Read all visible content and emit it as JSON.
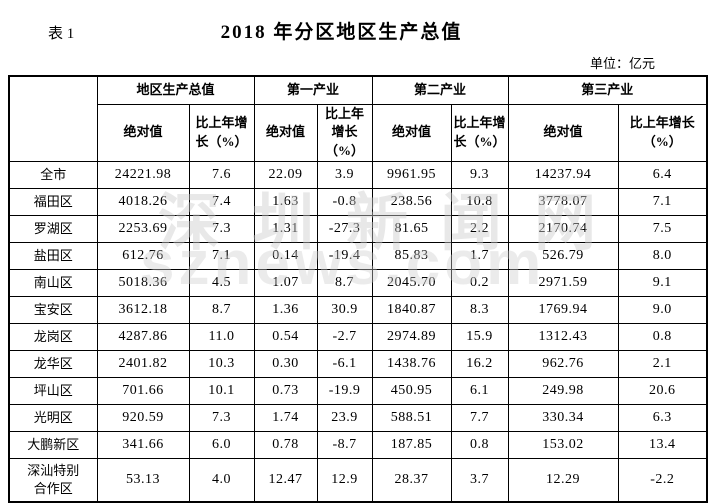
{
  "header": {
    "table_label": "表 1",
    "title": "2018 年分区地区生产总值",
    "unit_note": "单位：亿元"
  },
  "watermark": {
    "line1": "深圳新闻网",
    "line2": "sznews.com"
  },
  "table": {
    "group_headers": [
      "地区生产总值",
      "第一产业",
      "第二产业",
      "第三产业"
    ],
    "sub_headers": [
      "绝对值",
      "比上年增长（%）"
    ],
    "rows": [
      {
        "region": "全市",
        "values": [
          "24221.98",
          "7.6",
          "22.09",
          "3.9",
          "9961.95",
          "9.3",
          "14237.94",
          "6.4"
        ]
      },
      {
        "region": "福田区",
        "values": [
          "4018.26",
          "7.4",
          "1.63",
          "-0.8",
          "238.56",
          "10.8",
          "3778.07",
          "7.1"
        ]
      },
      {
        "region": "罗湖区",
        "values": [
          "2253.69",
          "7.3",
          "1.31",
          "-27.3",
          "81.65",
          "2.2",
          "2170.74",
          "7.5"
        ]
      },
      {
        "region": "盐田区",
        "values": [
          "612.76",
          "7.1",
          "0.14",
          "-19.4",
          "85.83",
          "1.7",
          "526.79",
          "8.0"
        ]
      },
      {
        "region": "南山区",
        "values": [
          "5018.36",
          "4.5",
          "1.07",
          "8.7",
          "2045.70",
          "0.2",
          "2971.59",
          "9.1"
        ]
      },
      {
        "region": "宝安区",
        "values": [
          "3612.18",
          "8.7",
          "1.36",
          "30.9",
          "1840.87",
          "8.3",
          "1769.94",
          "9.0"
        ]
      },
      {
        "region": "龙岗区",
        "values": [
          "4287.86",
          "11.0",
          "0.54",
          "-2.7",
          "2974.89",
          "15.9",
          "1312.43",
          "0.8"
        ]
      },
      {
        "region": "龙华区",
        "values": [
          "2401.82",
          "10.3",
          "0.30",
          "-6.1",
          "1438.76",
          "16.2",
          "962.76",
          "2.1"
        ]
      },
      {
        "region": "坪山区",
        "values": [
          "701.66",
          "10.1",
          "0.73",
          "-19.9",
          "450.95",
          "6.1",
          "249.98",
          "20.6"
        ]
      },
      {
        "region": "光明区",
        "values": [
          "920.59",
          "7.3",
          "1.74",
          "23.9",
          "588.51",
          "7.7",
          "330.34",
          "6.3"
        ]
      },
      {
        "region": "大鹏新区",
        "values": [
          "341.66",
          "6.0",
          "0.78",
          "-8.7",
          "187.85",
          "0.8",
          "153.02",
          "13.4"
        ]
      },
      {
        "region": "深汕特别\n合作区",
        "values": [
          "53.13",
          "4.0",
          "12.47",
          "12.9",
          "28.37",
          "3.7",
          "12.29",
          "-2.2"
        ]
      }
    ]
  },
  "colors": {
    "text": "#000000",
    "border": "#000000",
    "background": "#ffffff",
    "watermark": "#cdcdcd"
  }
}
